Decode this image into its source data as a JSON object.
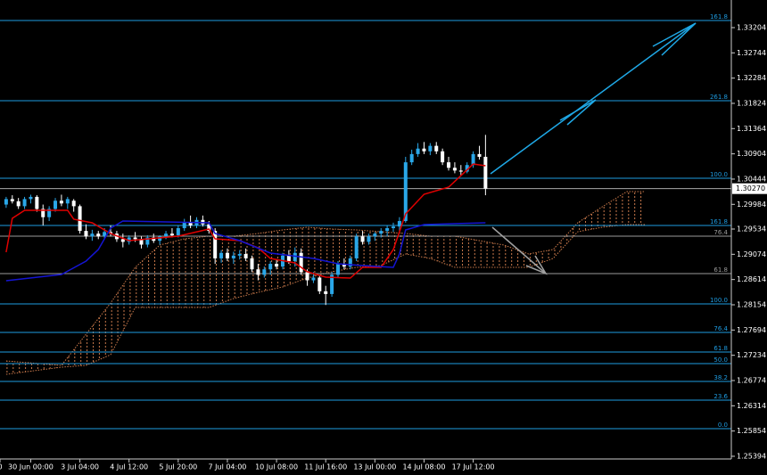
{
  "chart_data": {
    "type": "candlestick",
    "xlim": [
      -1,
      118
    ],
    "ylim": [
      1.25345,
      1.33707
    ],
    "xticks": [
      {
        "value": -1,
        "label": "0"
      },
      {
        "value": 4,
        "label": "30 Jun 00:00"
      },
      {
        "value": 12,
        "label": "3 Jul 04:00"
      },
      {
        "value": 20,
        "label": "4 Jul 12:00"
      },
      {
        "value": 28,
        "label": "5 Jul 20:00"
      },
      {
        "value": 36,
        "label": "7 Jul 04:00"
      },
      {
        "value": 44,
        "label": "10 Jul 08:00"
      },
      {
        "value": 52,
        "label": "11 Jul 16:00"
      },
      {
        "value": 60,
        "label": "13 Jul 00:00"
      },
      {
        "value": 68,
        "label": "14 Jul 08:00"
      },
      {
        "value": 76,
        "label": "17 Jul 12:00"
      }
    ],
    "yticks": [
      1.33204,
      1.32744,
      1.32284,
      1.31824,
      1.31364,
      1.30904,
      1.30444,
      1.29984,
      1.29534,
      1.29074,
      1.28614,
      1.28154,
      1.27694,
      1.27234,
      1.26774,
      1.26314,
      1.25854,
      1.25394
    ],
    "current_price": {
      "value": 1.3027,
      "label": "1.30270"
    },
    "up_color": "#2aa7e8",
    "down_color": "#ffffff",
    "x": [
      0,
      1,
      2,
      3,
      4,
      5,
      6,
      7,
      8,
      9,
      10,
      11,
      12,
      13,
      14,
      15,
      16,
      17,
      18,
      19,
      20,
      21,
      22,
      23,
      24,
      25,
      26,
      27,
      28,
      29,
      30,
      31,
      32,
      33,
      34,
      35,
      36,
      37,
      38,
      39,
      40,
      41,
      42,
      43,
      44,
      45,
      46,
      47,
      48,
      49,
      50,
      51,
      52,
      53,
      54,
      55,
      56,
      57,
      58,
      59,
      60,
      61,
      62,
      63,
      64,
      65,
      66,
      67,
      68,
      69,
      70,
      71,
      72,
      73,
      74,
      75,
      76,
      77,
      78
    ],
    "open": [
      1.2998,
      1.3008,
      1.3004,
      1.2995,
      1.3008,
      1.3012,
      1.299,
      1.2975,
      1.299,
      1.3005,
      1.3,
      1.3005,
      1.2995,
      1.295,
      1.294,
      1.2945,
      1.294,
      1.2948,
      1.2945,
      1.2935,
      1.293,
      1.2938,
      1.2935,
      1.2925,
      1.2938,
      1.2932,
      1.294,
      1.2945,
      1.2942,
      1.2955,
      1.2965,
      1.296,
      1.297,
      1.2962,
      1.295,
      1.29,
      1.291,
      1.29,
      1.2905,
      1.2908,
      1.29,
      1.288,
      1.287,
      1.288,
      1.289,
      1.2885,
      1.2905,
      1.2895,
      1.291,
      1.2875,
      1.286,
      1.2865,
      1.284,
      1.2835,
      1.287,
      1.289,
      1.2885,
      1.29,
      1.294,
      1.293,
      1.294,
      1.2945,
      1.295,
      1.2955,
      1.2958,
      1.2968,
      1.3075,
      1.309,
      1.31,
      1.3095,
      1.3105,
      1.3095,
      1.3075,
      1.3065,
      1.306,
      1.3058,
      1.307,
      1.309,
      1.3085
    ],
    "high": [
      1.3012,
      1.3015,
      1.301,
      1.3012,
      1.3016,
      1.3015,
      1.2998,
      1.2995,
      1.301,
      1.3016,
      1.3012,
      1.3008,
      1.2998,
      1.2962,
      1.2952,
      1.295,
      1.2955,
      1.296,
      1.295,
      1.2945,
      1.2942,
      1.2948,
      1.294,
      1.2942,
      1.2945,
      1.2942,
      1.295,
      1.2955,
      1.296,
      1.2972,
      1.2978,
      1.2975,
      1.2978,
      1.2968,
      1.2955,
      1.2915,
      1.2918,
      1.2912,
      1.2915,
      1.2918,
      1.2905,
      1.289,
      1.2885,
      1.2895,
      1.2898,
      1.291,
      1.2915,
      1.292,
      1.2918,
      1.288,
      1.2875,
      1.287,
      1.285,
      1.2875,
      1.2895,
      1.29,
      1.2905,
      1.2945,
      1.295,
      1.2945,
      1.2948,
      1.2955,
      1.296,
      1.2965,
      1.2975,
      1.3085,
      1.3098,
      1.311,
      1.3112,
      1.311,
      1.3112,
      1.31,
      1.3085,
      1.3075,
      1.307,
      1.3075,
      1.3095,
      1.3105,
      1.3125
    ],
    "low": [
      1.2992,
      1.3,
      1.299,
      1.299,
      1.3,
      1.2985,
      1.296,
      1.2968,
      1.2985,
      1.2995,
      1.299,
      1.2985,
      1.2945,
      1.2935,
      1.2932,
      1.2935,
      1.2936,
      1.294,
      1.293,
      1.292,
      1.2925,
      1.293,
      1.2918,
      1.292,
      1.2928,
      1.2925,
      1.2935,
      1.2938,
      1.2938,
      1.295,
      1.2955,
      1.2955,
      1.2958,
      1.2945,
      1.289,
      1.2892,
      1.2895,
      1.289,
      1.2898,
      1.2895,
      1.2875,
      1.286,
      1.2865,
      1.287,
      1.288,
      1.288,
      1.289,
      1.2885,
      1.287,
      1.285,
      1.2855,
      1.2835,
      1.2815,
      1.283,
      1.2865,
      1.288,
      1.288,
      1.2895,
      1.2925,
      1.2925,
      1.2932,
      1.2938,
      1.294,
      1.2948,
      1.295,
      1.2965,
      1.307,
      1.3085,
      1.309,
      1.3088,
      1.309,
      1.307,
      1.306,
      1.3055,
      1.305,
      1.3055,
      1.3065,
      1.308,
      1.3015
    ],
    "close": [
      1.3008,
      1.3004,
      1.2995,
      1.3008,
      1.3012,
      1.299,
      1.2975,
      1.299,
      1.3005,
      1.3,
      1.3008,
      1.2995,
      1.295,
      1.294,
      1.2945,
      1.294,
      1.2948,
      1.2945,
      1.2935,
      1.293,
      1.2938,
      1.2935,
      1.2925,
      1.2938,
      1.2932,
      1.294,
      1.2945,
      1.2942,
      1.2955,
      1.2965,
      1.296,
      1.297,
      1.2962,
      1.295,
      1.29,
      1.291,
      1.29,
      1.2905,
      1.2908,
      1.29,
      1.288,
      1.287,
      1.288,
      1.289,
      1.2885,
      1.2905,
      1.2895,
      1.291,
      1.2875,
      1.286,
      1.2865,
      1.284,
      1.2835,
      1.287,
      1.289,
      1.2885,
      1.29,
      1.294,
      1.293,
      1.294,
      1.2945,
      1.295,
      1.2955,
      1.2958,
      1.2968,
      1.3075,
      1.309,
      1.31,
      1.3095,
      1.3105,
      1.3095,
      1.3075,
      1.3065,
      1.306,
      1.3058,
      1.307,
      1.309,
      1.3085,
      1.3027
    ],
    "lines": [
      {
        "color": "#e00000",
        "x": [
          0,
          1,
          3,
          10,
          11,
          14,
          17,
          20,
          28,
          33,
          34,
          38,
          41,
          43,
          47,
          49,
          52,
          56,
          58,
          61,
          63,
          65,
          68,
          72,
          74,
          76,
          78
        ],
        "values": [
          1.29112,
          1.29729,
          1.29875,
          1.29875,
          1.29713,
          1.29648,
          1.29453,
          1.29323,
          1.29404,
          1.29534,
          1.29355,
          1.29323,
          1.29193,
          1.28998,
          1.28917,
          1.28755,
          1.28657,
          1.28641,
          1.28836,
          1.28836,
          1.29161,
          1.2981,
          1.30167,
          1.30297,
          1.30508,
          1.30719,
          1.30687
        ]
      },
      {
        "color": "#1414d2",
        "x": [
          0,
          9,
          13,
          15,
          17,
          19,
          33,
          34,
          38,
          43,
          50,
          54,
          58,
          63,
          64,
          65,
          68,
          78
        ],
        "values": [
          1.28592,
          1.28706,
          1.2895,
          1.29161,
          1.2955,
          1.2968,
          1.29648,
          1.29453,
          1.29323,
          1.29096,
          1.28998,
          1.28901,
          1.28868,
          1.28836,
          1.2908,
          1.29518,
          1.29615,
          1.29648
        ]
      }
    ],
    "cloud": {
      "color": "#c8784a",
      "x": [
        0,
        9,
        13,
        17,
        21,
        25,
        29,
        33,
        37,
        41,
        45,
        49,
        53,
        57,
        61,
        65,
        69,
        73,
        77,
        81,
        85,
        89,
        93,
        97,
        101,
        104
      ],
      "span_a": [
        1.27131,
        1.2705,
        1.27618,
        1.28186,
        1.28836,
        1.29242,
        1.29355,
        1.29404,
        1.29404,
        1.29453,
        1.29518,
        1.29567,
        1.29534,
        1.29518,
        1.29485,
        1.29453,
        1.29404,
        1.29404,
        1.29323,
        1.29242,
        1.2908,
        1.29161,
        1.29648,
        1.2994,
        1.30216,
        1.30216
      ],
      "span_b": [
        1.26887,
        1.27017,
        1.2705,
        1.27245,
        1.28105,
        1.28105,
        1.28105,
        1.28105,
        1.28268,
        1.28381,
        1.28479,
        1.28641,
        1.28755,
        1.28836,
        1.28868,
        1.2908,
        1.28998,
        1.28836,
        1.28836,
        1.28836,
        1.28836,
        1.28998,
        1.29485,
        1.29567,
        1.29615,
        1.29615
      ]
    },
    "levels": [
      {
        "label": "161.8",
        "value": 1.33334,
        "color": "#1e9be0"
      },
      {
        "label": "261.8",
        "value": 1.31872,
        "color": "#1e9be0"
      },
      {
        "label": "100.0",
        "value": 1.3046,
        "color": "#1e9be0"
      },
      {
        "label": "161.8",
        "value": 1.29599,
        "color": "#1e9be0"
      },
      {
        "label": "76.4",
        "value": 1.29404,
        "color": "#9a9a9a"
      },
      {
        "label": "61.8",
        "value": 1.28722,
        "color": "#9a9a9a"
      },
      {
        "label": "100.0",
        "value": 1.2817,
        "color": "#1e9be0"
      },
      {
        "label": "76.4",
        "value": 1.27651,
        "color": "#1e9be0"
      },
      {
        "label": "61.8",
        "value": 1.27293,
        "color": "#1e9be0"
      },
      {
        "label": "50.0",
        "value": 1.27082,
        "color": "#1e9be0"
      },
      {
        "label": "38.2",
        "value": 1.26758,
        "color": "#1e9be0"
      },
      {
        "label": "23.6",
        "value": 1.26417,
        "color": "#1e9be0"
      },
      {
        "label": "0.0",
        "value": 1.25897,
        "color": "#1e9be0"
      }
    ]
  }
}
